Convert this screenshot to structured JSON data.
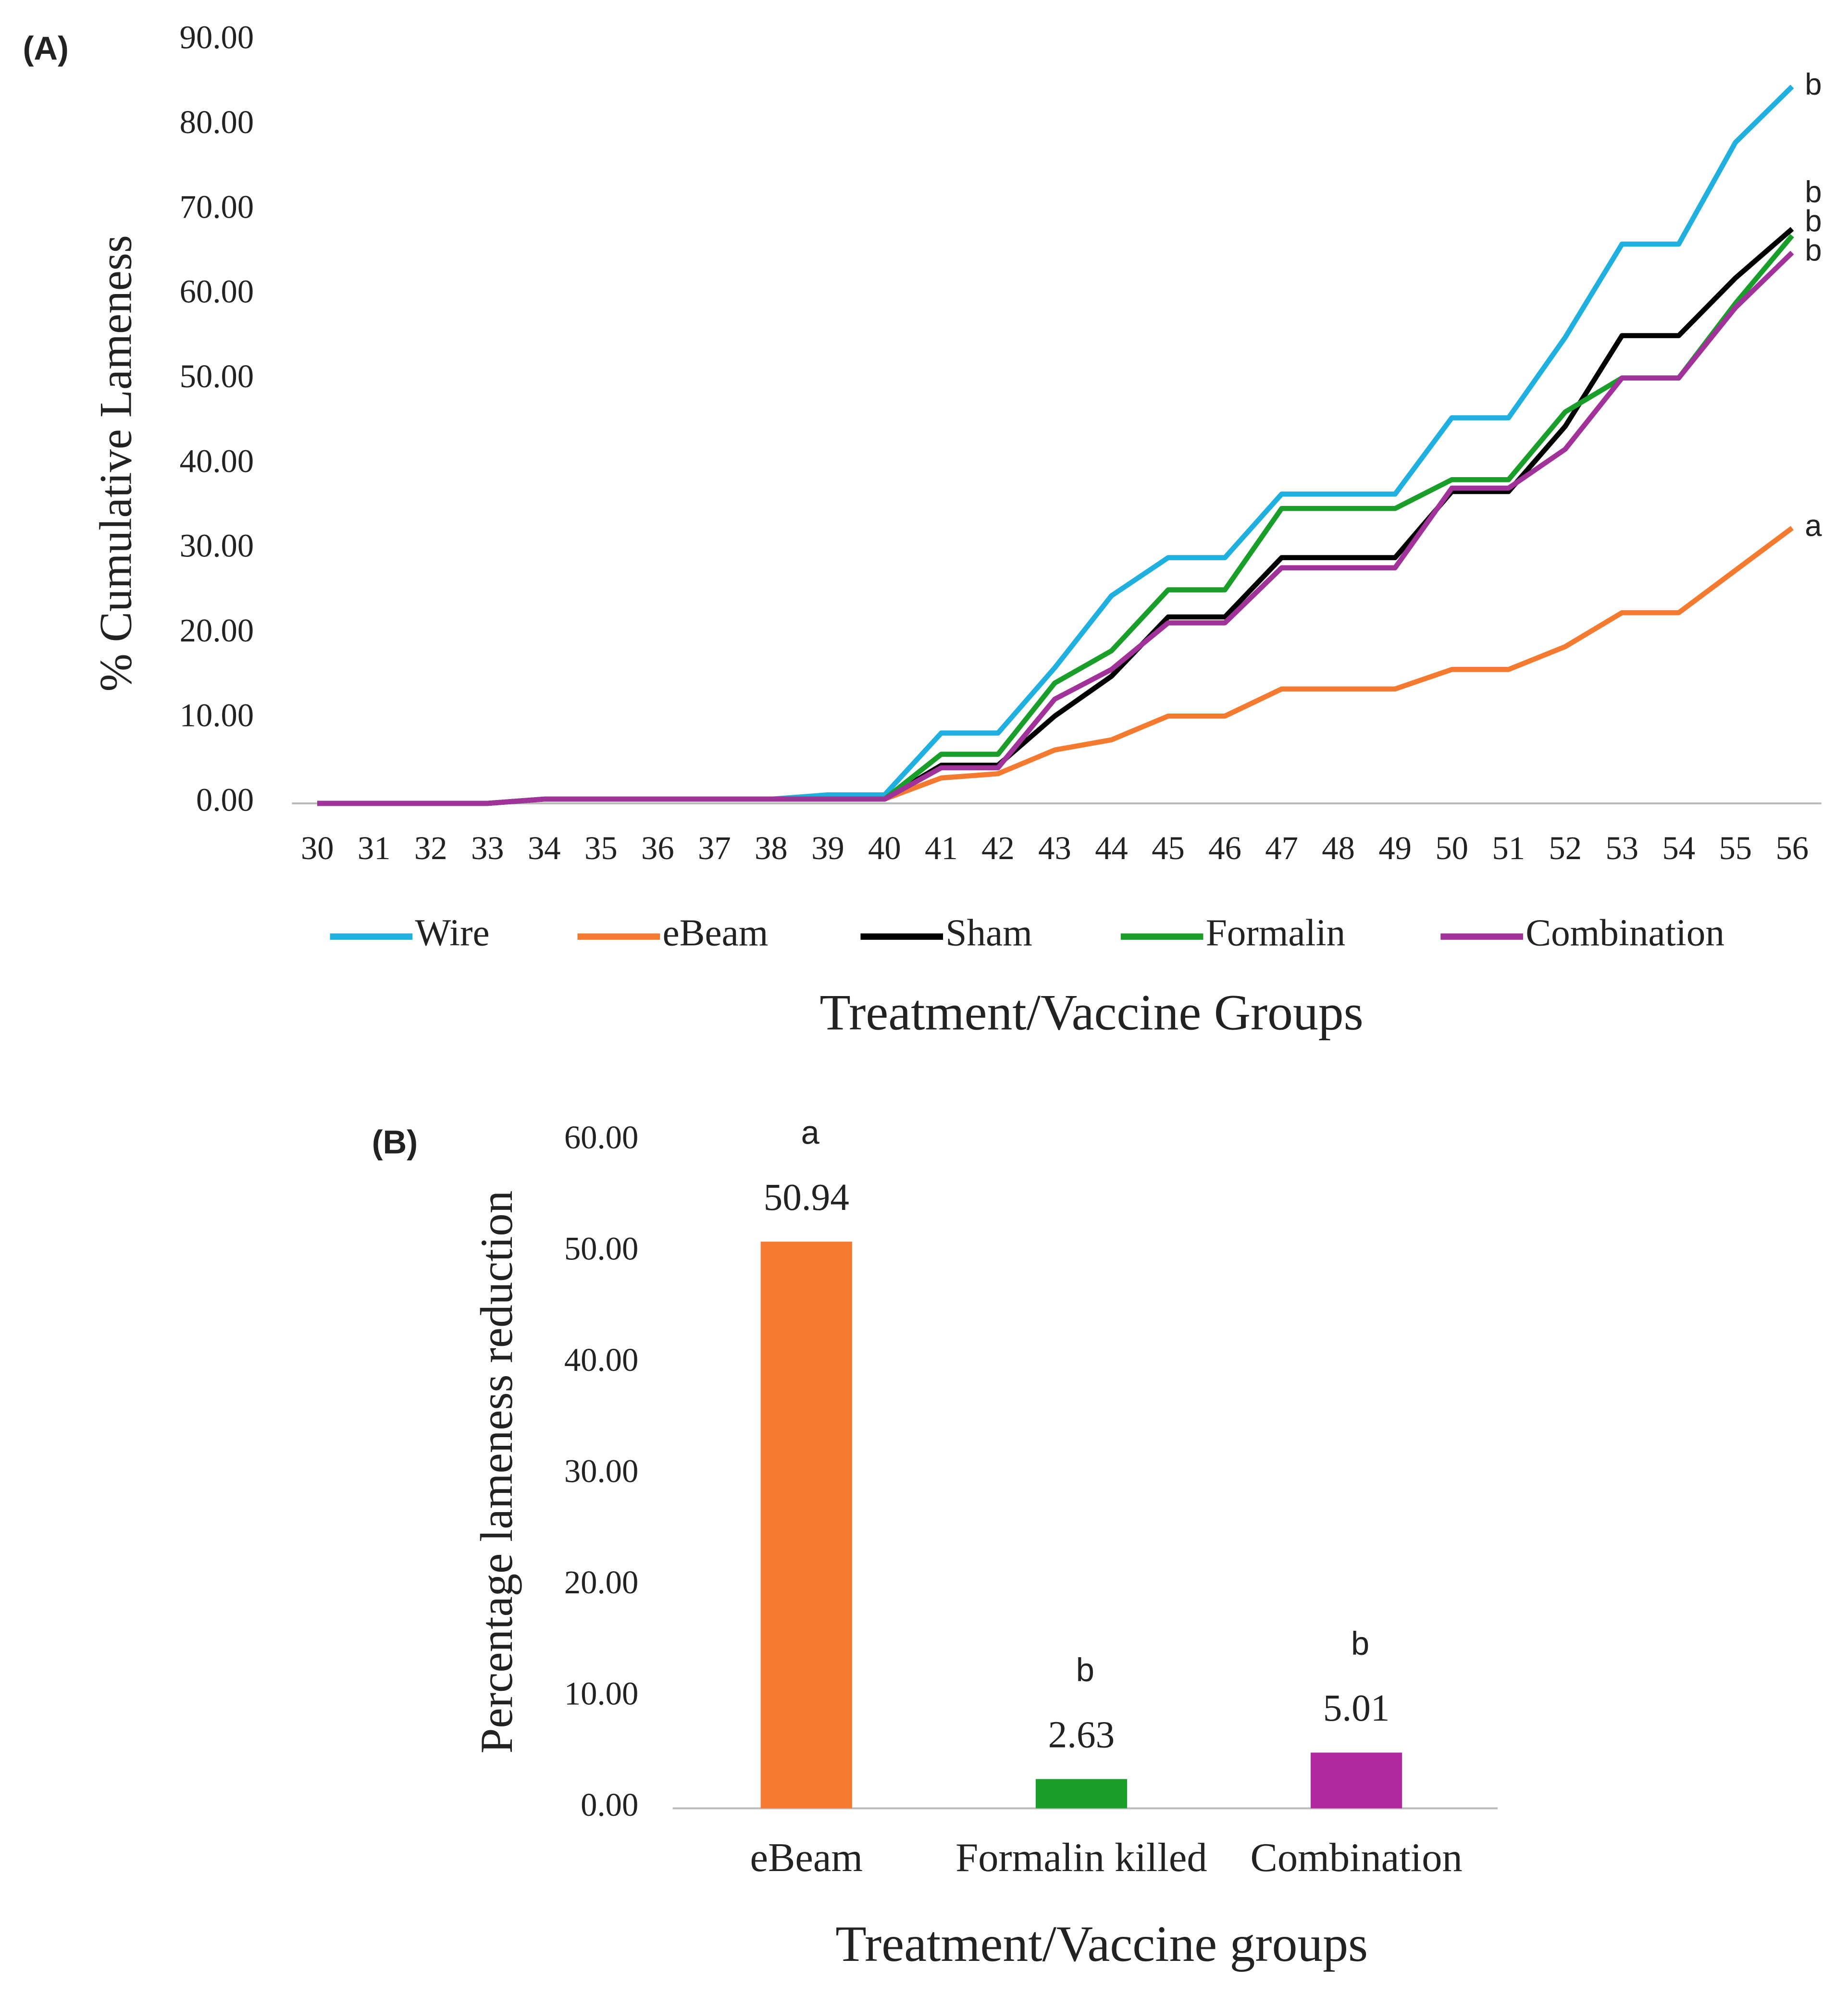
{
  "chart_data": [
    {
      "type": "line",
      "panel_label": "(A)",
      "y_label": "% Cumulative Lameness",
      "x_label": "Treatment/Vaccine Groups",
      "x": [
        30,
        31,
        32,
        33,
        34,
        35,
        36,
        37,
        38,
        39,
        40,
        41,
        42,
        43,
        44,
        45,
        46,
        47,
        48,
        49,
        50,
        51,
        52,
        53,
        54,
        55,
        56
      ],
      "xlim": [
        30,
        56
      ],
      "ylim": [
        0,
        90
      ],
      "yticks": [
        {
          "value": 0,
          "label": "0.00"
        },
        {
          "value": 10,
          "label": "10.00"
        },
        {
          "value": 20,
          "label": "20.00"
        },
        {
          "value": 30,
          "label": "30.00"
        },
        {
          "value": 40,
          "label": "40.00"
        },
        {
          "value": 50,
          "label": "50.00"
        },
        {
          "value": 60,
          "label": "60.00"
        },
        {
          "value": 70,
          "label": "70.00"
        },
        {
          "value": 80,
          "label": "80.00"
        },
        {
          "value": 90,
          "label": "90.00"
        }
      ],
      "legend": "bottom",
      "series": [
        {
          "name": "Wire",
          "color": "#1fb0e0",
          "end_label": "b",
          "values": [
            0,
            0,
            0,
            0,
            0.5,
            0.5,
            0.5,
            0.5,
            0.5,
            1,
            1,
            8.3,
            8.3,
            16,
            24.5,
            29,
            29,
            36.5,
            36.5,
            36.5,
            45.5,
            45.5,
            55,
            66,
            66,
            78,
            84.6
          ]
        },
        {
          "name": "eBeam",
          "color": "#f47a30",
          "end_label": "a",
          "values": [
            0,
            0,
            0,
            0,
            0.5,
            0.5,
            0.5,
            0.5,
            0.5,
            0.5,
            0.5,
            3,
            3.5,
            6.3,
            7.5,
            10.3,
            10.3,
            13.5,
            13.5,
            13.5,
            15.8,
            15.8,
            18.5,
            22.5,
            22.5,
            27.5,
            32.5
          ]
        },
        {
          "name": "Sham",
          "color": "#000000",
          "end_label": "b",
          "values": [
            0,
            0,
            0,
            0,
            0.5,
            0.5,
            0.5,
            0.5,
            0.5,
            0.5,
            0.5,
            4.5,
            4.5,
            10.3,
            15,
            22,
            22,
            29,
            29,
            29,
            36.8,
            36.8,
            44.5,
            55.2,
            55.2,
            62,
            67.8
          ]
        },
        {
          "name": "Formalin",
          "color": "#1a9e2a",
          "end_label": "b",
          "values": [
            0,
            0,
            0,
            0,
            0.5,
            0.5,
            0.5,
            0.5,
            0.5,
            0.5,
            0.5,
            5.8,
            5.8,
            14.2,
            18,
            25.2,
            25.2,
            34.8,
            34.8,
            34.8,
            38.2,
            38.2,
            46.2,
            50.2,
            50.2,
            59,
            67
          ]
        },
        {
          "name": "Combination",
          "color": "#a0329a",
          "end_label": "b",
          "values": [
            0,
            0,
            0,
            0,
            0.5,
            0.5,
            0.5,
            0.5,
            0.5,
            0.5,
            0.5,
            4.2,
            4.2,
            12.3,
            15.8,
            21.3,
            21.3,
            27.8,
            27.8,
            27.8,
            37.2,
            37.2,
            41.8,
            50.2,
            50.2,
            58.5,
            65
          ]
        }
      ]
    },
    {
      "type": "bar",
      "panel_label": "(B)",
      "y_label": "Percentage lameness reduction",
      "x_label": "Treatment/Vaccine groups",
      "categories": [
        "eBeam",
        "Formalin killed",
        "Combination"
      ],
      "values": [
        50.94,
        2.63,
        5.01
      ],
      "colors": [
        "#f47a30",
        "#1a9e2a",
        "#b0279e"
      ],
      "annotations": [
        "a",
        "b",
        "b"
      ],
      "ylim": [
        0,
        60
      ],
      "yticks": [
        {
          "value": 0,
          "label": "0.00"
        },
        {
          "value": 10,
          "label": "10.00"
        },
        {
          "value": 20,
          "label": "20.00"
        },
        {
          "value": 30,
          "label": "30.00"
        },
        {
          "value": 40,
          "label": "40.00"
        },
        {
          "value": 50,
          "label": "50.00"
        },
        {
          "value": 60,
          "label": "60.00"
        }
      ]
    }
  ]
}
